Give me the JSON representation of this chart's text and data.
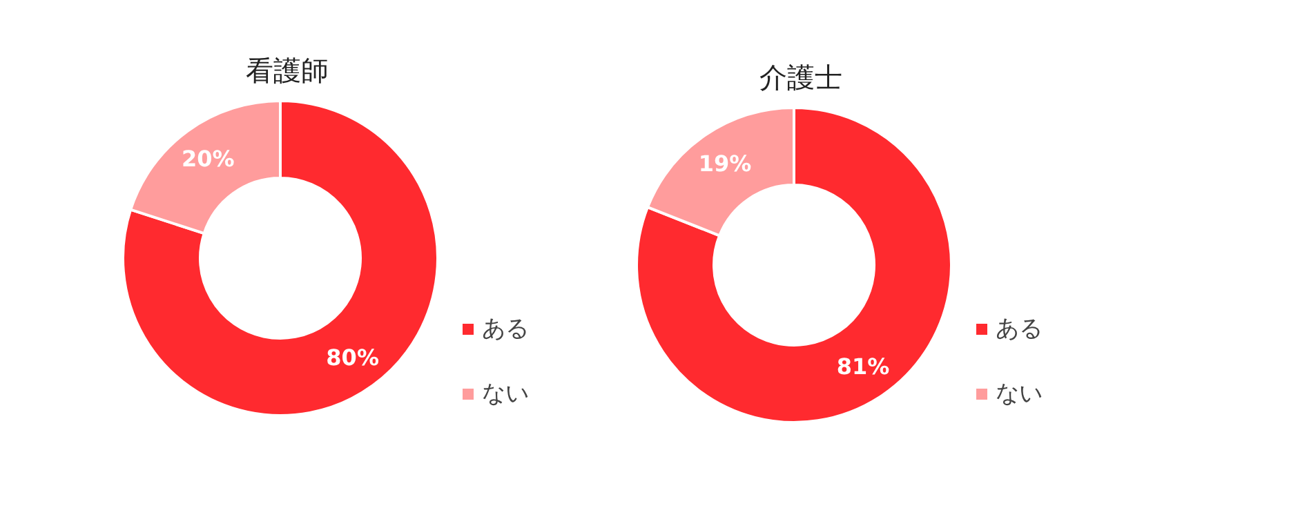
{
  "chart_data": [
    {
      "type": "donut",
      "title": "看護師",
      "categories": [
        "ある",
        "ない"
      ],
      "values": [
        80,
        20
      ],
      "value_labels": [
        "80%",
        "20%"
      ],
      "colors": [
        "#ff2a2f",
        "#ff9c9c"
      ],
      "legend": "right"
    },
    {
      "type": "donut",
      "title": "介護士",
      "categories": [
        "ある",
        "ない"
      ],
      "values": [
        81,
        19
      ],
      "value_labels": [
        "81%",
        "19%"
      ],
      "colors": [
        "#ff2a2f",
        "#ff9c9c"
      ],
      "legend": "right"
    }
  ]
}
